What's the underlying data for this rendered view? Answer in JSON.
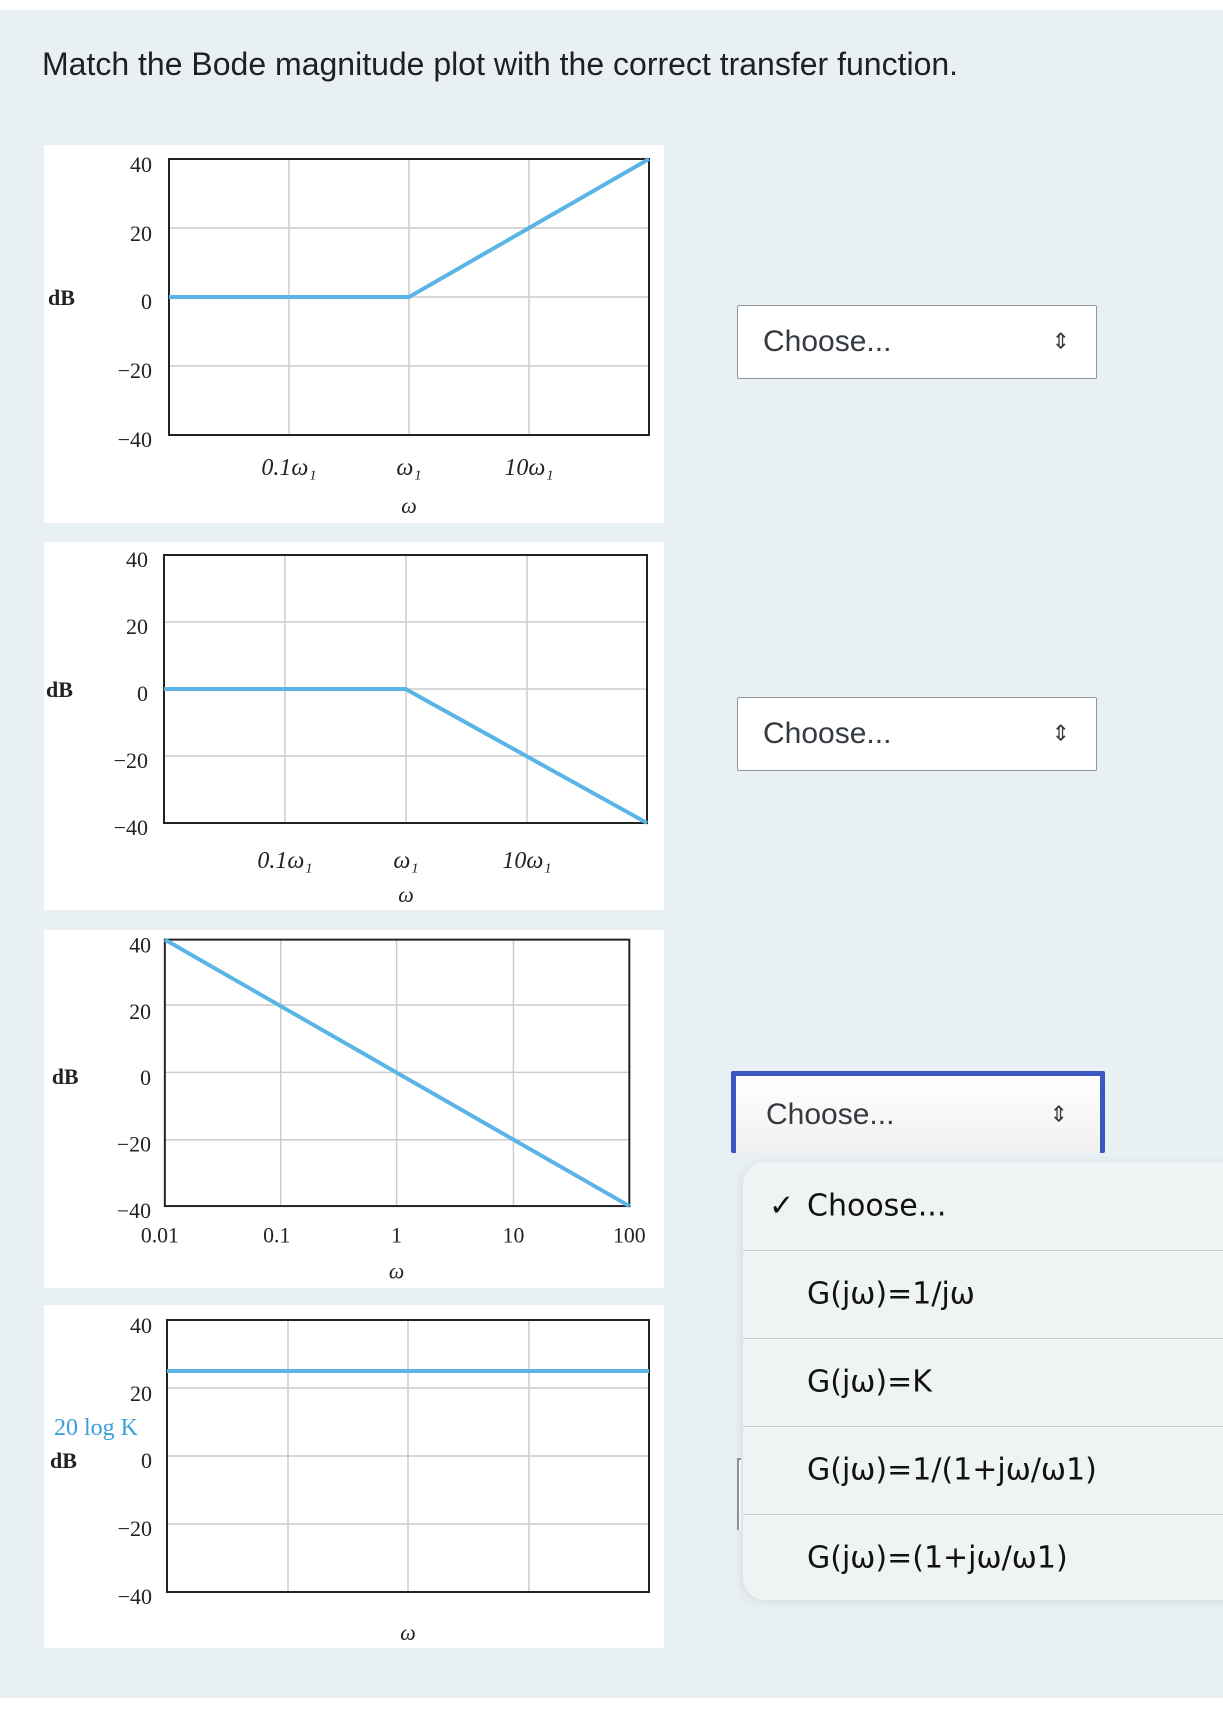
{
  "question": "Match the Bode magnitude plot with the correct transfer function.",
  "plots": [
    {
      "y_axis_label": "dB",
      "y_ticks": [
        "40",
        "20",
        "0",
        "−20",
        "−40"
      ],
      "x_ticks": [
        "0.1ω₁",
        "ω₁",
        "10ω₁"
      ],
      "x_axis_label": "ω"
    },
    {
      "y_axis_label": "dB",
      "y_ticks": [
        "40",
        "20",
        "0",
        "−20",
        "−40"
      ],
      "x_ticks": [
        "0.1ω₁",
        "ω₁",
        "10ω₁"
      ],
      "x_axis_label": "ω"
    },
    {
      "y_axis_label": "dB",
      "y_ticks": [
        "40",
        "20",
        "0",
        "−20",
        "−40"
      ],
      "x_ticks": [
        "0.01",
        "0.1",
        "1",
        "10",
        "100"
      ],
      "x_axis_label": "ω"
    },
    {
      "y_axis_label": "dB",
      "gain_label": "20 log K",
      "y_ticks": [
        "40",
        "20",
        "0",
        "−20",
        "−40"
      ],
      "x_axis_label": "ω"
    }
  ],
  "chart_data": [
    {
      "type": "line",
      "x_scale": "log",
      "x": [
        "0.01ω₁",
        "ω₁",
        "100ω₁"
      ],
      "y": [
        0,
        0,
        40
      ],
      "ylim": [
        -40,
        40
      ],
      "grid": true,
      "color": "#5ab4e5"
    },
    {
      "type": "line",
      "x_scale": "log",
      "x": [
        "0.01ω₁",
        "ω₁",
        "100ω₁"
      ],
      "y": [
        0,
        0,
        -40
      ],
      "ylim": [
        -40,
        40
      ],
      "grid": true,
      "color": "#5ab4e5"
    },
    {
      "type": "line",
      "x_scale": "log",
      "x": [
        0.01,
        0.1,
        1,
        10,
        100
      ],
      "y": [
        40,
        20,
        0,
        -20,
        -40
      ],
      "ylim": [
        -40,
        40
      ],
      "grid": true,
      "color": "#5ab4e5"
    },
    {
      "type": "line",
      "x_scale": "log",
      "y": [
        25,
        25
      ],
      "y_label": "20 log K",
      "ylim": [
        -40,
        40
      ],
      "grid": true,
      "color": "#5ab4e5"
    }
  ],
  "selects": [
    {
      "value": "Choose...",
      "arrow_icon": "⇕"
    },
    {
      "value": "Choose...",
      "arrow_icon": "⇕"
    },
    {
      "value": "Choose...",
      "arrow_icon": "⇕"
    }
  ],
  "dropdown": {
    "selected_check": "✓",
    "options": [
      "Choose...",
      "G(jω)=1/jω",
      "G(jω)=K",
      "G(jω)=1/(1+jω/ω1)",
      "G(jω)=(1+jω/ω1)"
    ]
  },
  "colors": {
    "panel_bg": "#e8f0f3",
    "line": "#5ab4e5",
    "focus_border": "#3b58c0"
  }
}
